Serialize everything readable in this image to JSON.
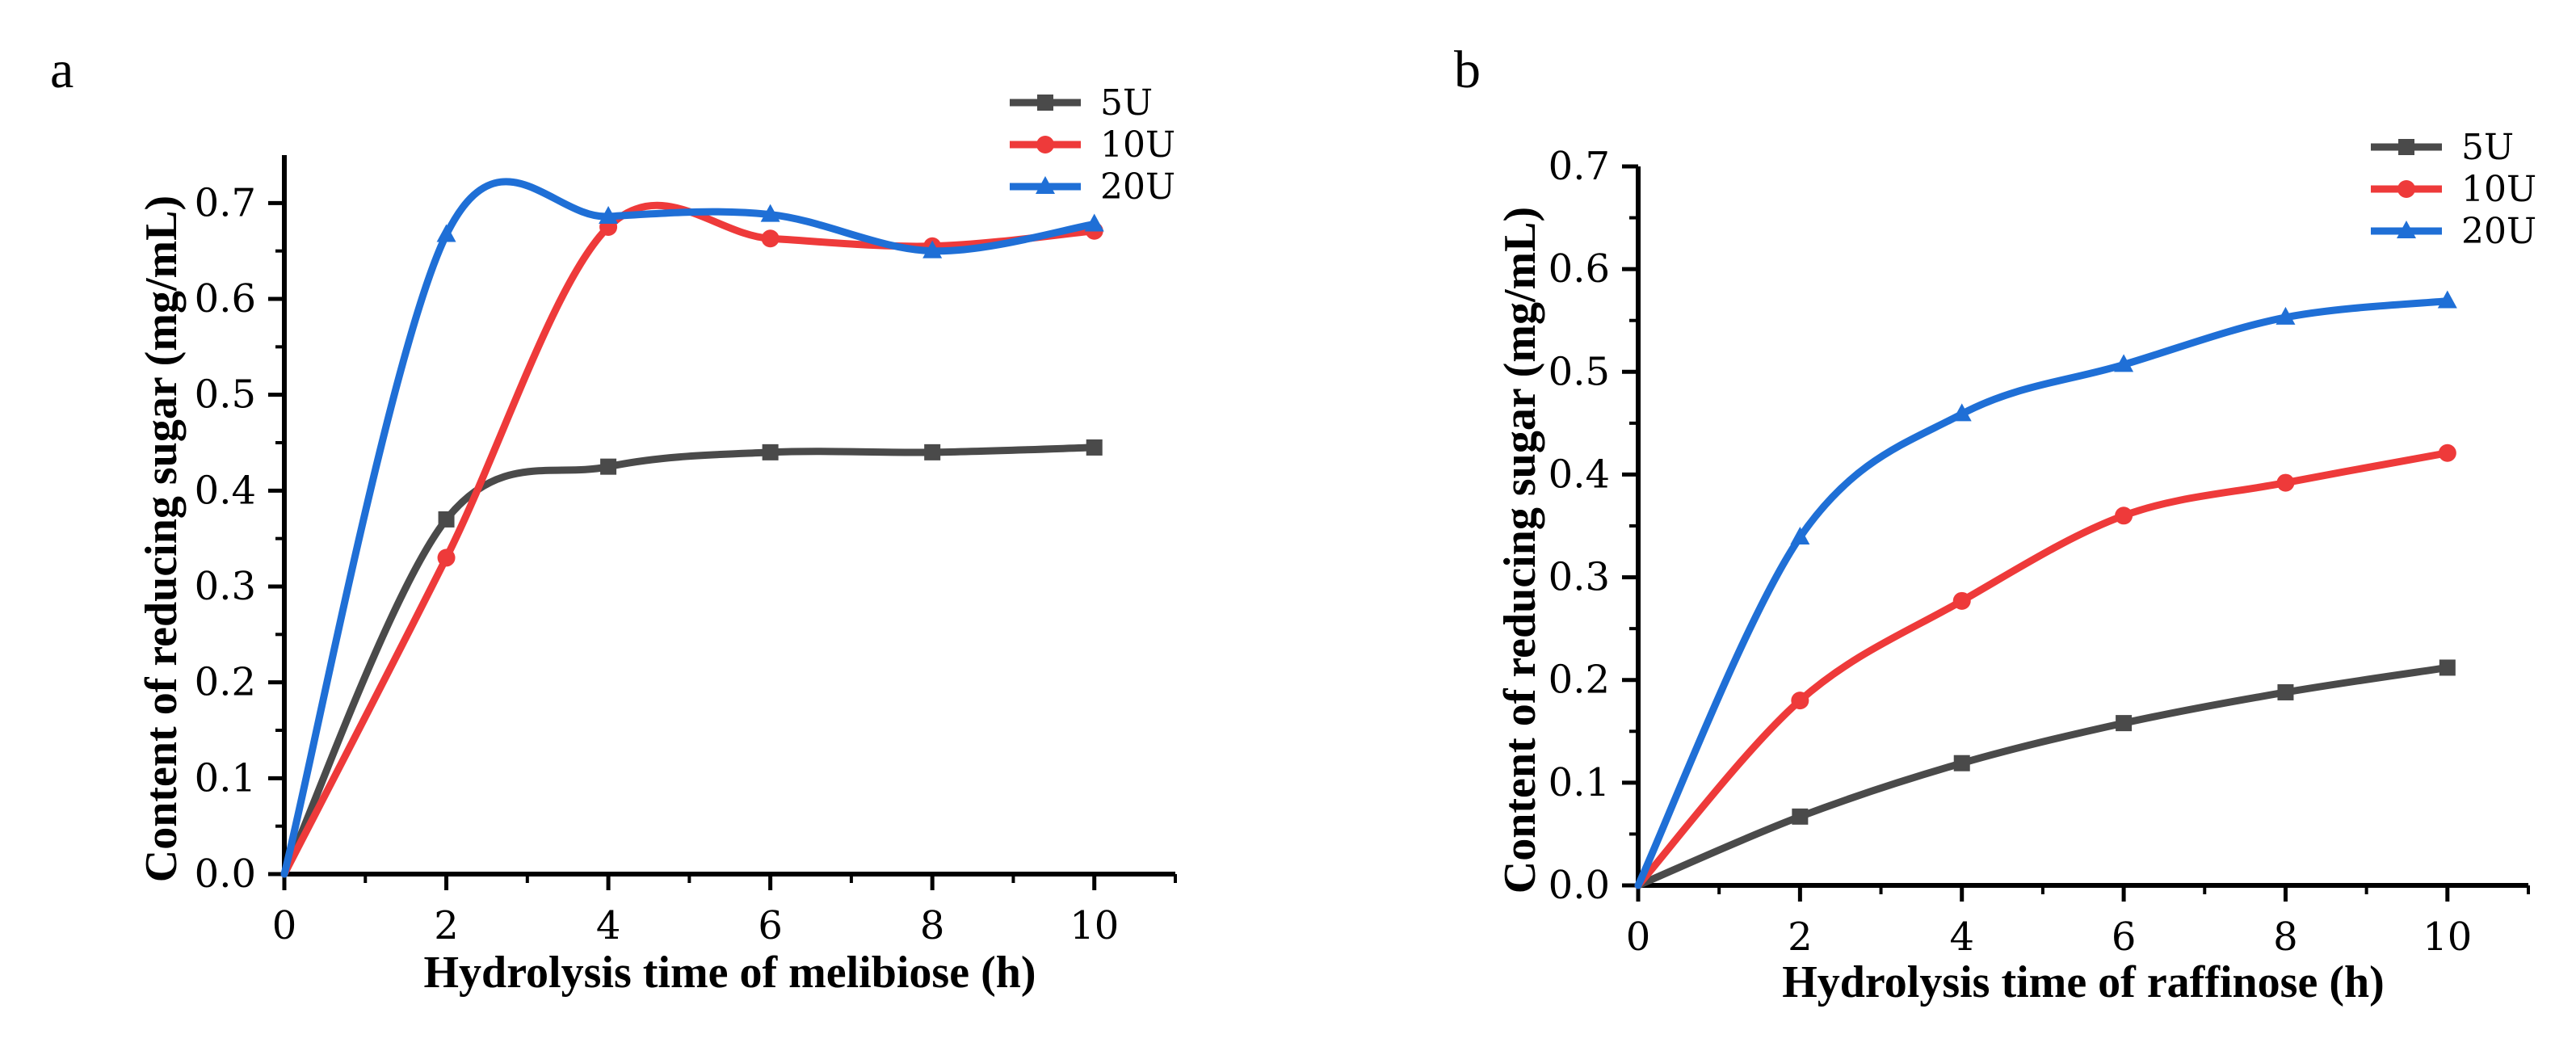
{
  "colors": {
    "5U": "#4a4a4a",
    "10U": "#ee3a3a",
    "20U": "#1f6fd6",
    "axis": "#000000"
  },
  "chart_data": [
    {
      "panel": "a",
      "type": "line",
      "xlabel": "Hydrolysis time of melibiose (h)",
      "ylabel": "Content of reducing sugar (mg/mL)",
      "xlim": [
        0,
        11
      ],
      "ylim": [
        0,
        0.75
      ],
      "xticks": [
        0,
        2,
        4,
        6,
        8,
        10
      ],
      "xtick_labels": [
        "0",
        "2",
        "4",
        "6",
        "8",
        "10"
      ],
      "yticks": [
        0,
        0.1,
        0.2,
        0.3,
        0.4,
        0.5,
        0.6,
        0.7
      ],
      "ytick_labels": [
        "0.0",
        "0.1",
        "0.2",
        "0.3",
        "0.4",
        "0.5",
        "0.6",
        "0.7"
      ],
      "legend_position": "top-right",
      "grid": false,
      "x": [
        0,
        2,
        4,
        6,
        8,
        10
      ],
      "series": [
        {
          "name": "5U",
          "marker": "square",
          "color": "#4a4a4a",
          "values": [
            0.0,
            0.37,
            0.425,
            0.44,
            0.44,
            0.445
          ]
        },
        {
          "name": "10U",
          "marker": "circle",
          "color": "#ee3a3a",
          "values": [
            0.0,
            0.33,
            0.675,
            0.663,
            0.655,
            0.671
          ]
        },
        {
          "name": "20U",
          "marker": "triangle",
          "color": "#1f6fd6",
          "values": [
            0.0,
            0.667,
            0.686,
            0.688,
            0.65,
            0.678
          ]
        }
      ]
    },
    {
      "panel": "b",
      "type": "line",
      "xlabel": "Hydrolysis time of raffinose (h)",
      "ylabel": "Content of reducing sugar (mg/mL)",
      "xlim": [
        0,
        11
      ],
      "ylim": [
        0,
        0.7
      ],
      "xticks": [
        0,
        2,
        4,
        6,
        8,
        10
      ],
      "xtick_labels": [
        "0",
        "2",
        "4",
        "6",
        "8",
        "10"
      ],
      "yticks": [
        0,
        0.1,
        0.2,
        0.3,
        0.4,
        0.5,
        0.6,
        0.7
      ],
      "ytick_labels": [
        "0.0",
        "0.1",
        "0.2",
        "0.3",
        "0.4",
        "0.5",
        "0.6",
        "0.7"
      ],
      "legend_position": "top-right",
      "grid": false,
      "x": [
        0,
        2,
        4,
        6,
        8,
        10
      ],
      "series": [
        {
          "name": "5U",
          "marker": "square",
          "color": "#4a4a4a",
          "values": [
            0.0,
            0.067,
            0.119,
            0.158,
            0.188,
            0.212
          ]
        },
        {
          "name": "10U",
          "marker": "circle",
          "color": "#ee3a3a",
          "values": [
            0.0,
            0.18,
            0.277,
            0.36,
            0.392,
            0.421
          ]
        },
        {
          "name": "20U",
          "marker": "triangle",
          "color": "#1f6fd6",
          "values": [
            0.0,
            0.339,
            0.459,
            0.507,
            0.553,
            0.569
          ]
        }
      ]
    }
  ]
}
